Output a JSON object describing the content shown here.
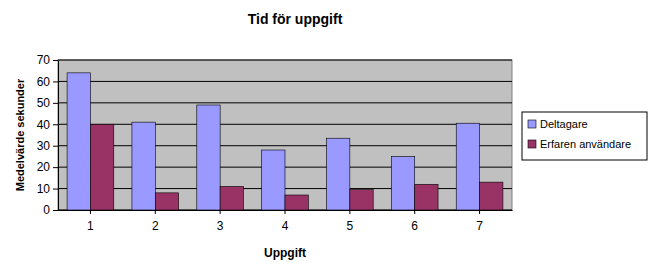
{
  "chart_data": {
    "type": "bar",
    "title": "Tid för uppgift",
    "x_label": "Uppgift",
    "y_label": "Medelvärde sekunder",
    "categories": [
      "1",
      "2",
      "3",
      "4",
      "5",
      "6",
      "7"
    ],
    "series": [
      {
        "name": "Deltagare",
        "color": "#9999ff",
        "values": [
          64,
          41,
          49,
          28,
          33.5,
          25,
          40.5
        ]
      },
      {
        "name": "Erfaren användare",
        "color": "#993366",
        "values": [
          40,
          8,
          11,
          7,
          9.5,
          12,
          13
        ]
      }
    ],
    "ylim": [
      0,
      70
    ],
    "yticks": [
      0,
      10,
      20,
      30,
      40,
      50,
      60,
      70
    ],
    "grid": true,
    "legend": "right"
  }
}
